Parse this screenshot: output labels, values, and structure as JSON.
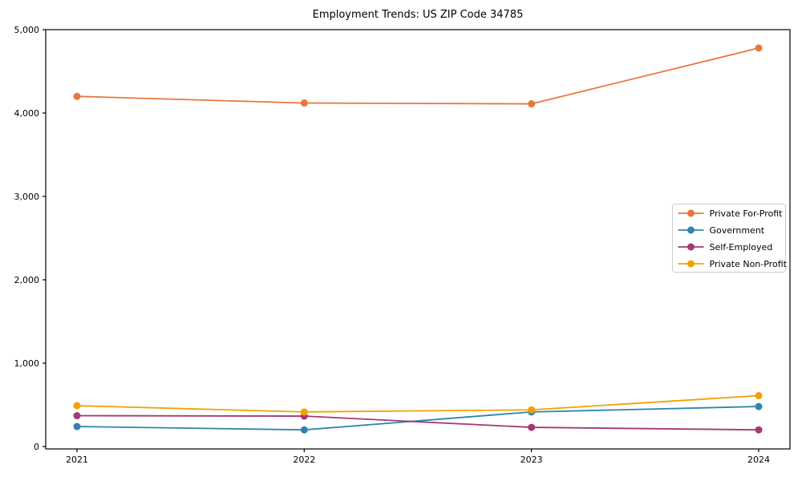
{
  "title": "Employment Trends: US ZIP Code 34785",
  "chart_data": {
    "type": "line",
    "title": "Employment Trends: US ZIP Code 34785",
    "x": [
      "2021",
      "2022",
      "2023",
      "2024"
    ],
    "series": [
      {
        "name": "Private For-Profit",
        "color": "#E8773B",
        "values": [
          4200,
          4120,
          4110,
          4780
        ]
      },
      {
        "name": "Government",
        "color": "#2E86AB",
        "values": [
          240,
          200,
          415,
          480
        ]
      },
      {
        "name": "Self-Employed",
        "color": "#A23B72",
        "values": [
          370,
          365,
          230,
          200
        ]
      },
      {
        "name": "Private Non-Profit",
        "color": "#F2A104",
        "values": [
          490,
          415,
          440,
          610
        ]
      }
    ],
    "ylim": [
      0,
      5000
    ],
    "yticks": [
      {
        "value": 0,
        "label": "0"
      },
      {
        "value": 1000,
        "label": "1,000"
      },
      {
        "value": 2000,
        "label": "2,000"
      },
      {
        "value": 3000,
        "label": "3,000"
      },
      {
        "value": 4000,
        "label": "4,000"
      },
      {
        "value": 5000,
        "label": "5,000"
      }
    ],
    "grid": false,
    "legend_position": "center-right",
    "background": "#ffffff",
    "frame_color": "#000000",
    "legend_border_color": "#cccccc"
  }
}
